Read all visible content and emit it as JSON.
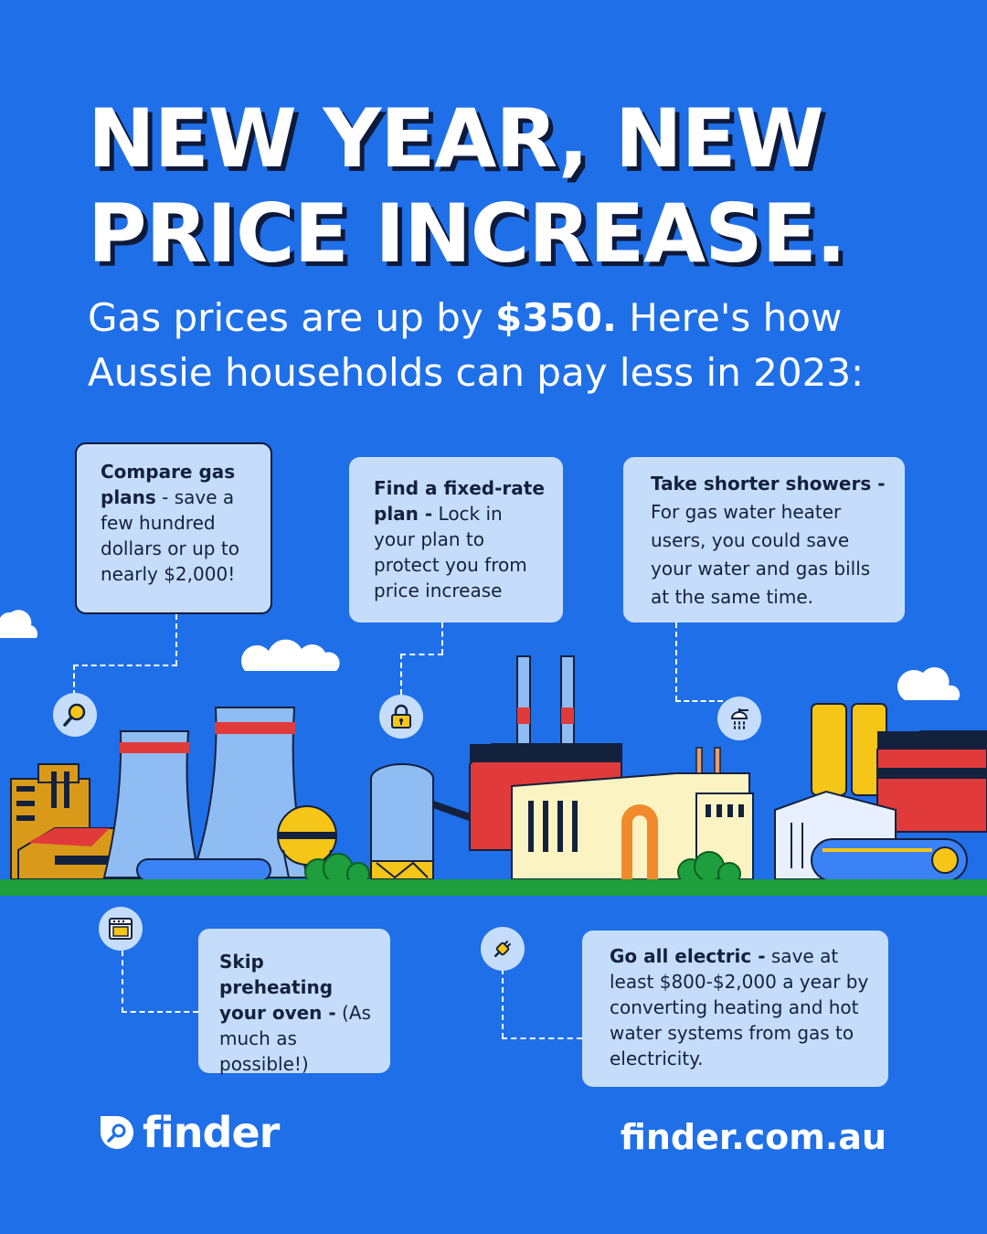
{
  "headline": {
    "line1": "NEW YEAR, NEW",
    "line2": "PRICE INCREASE."
  },
  "subhead": {
    "part1": "Gas prices are up by ",
    "amount": "$350.",
    "part2": " Here's how",
    "line2": "Aussie households can pay less in 2023:"
  },
  "tips": [
    {
      "title": "Compare gas plans",
      "body": " - save a few hundred dollars or up to nearly $2,000!",
      "icon": "magnifier-icon"
    },
    {
      "title": "Find a fixed-rate plan -",
      "body": " Lock in your plan to protect you from price increase",
      "icon": "lock-icon"
    },
    {
      "title": "Take shorter showers -",
      "body": " For gas water heater users, you could save your water and gas bills at the same time.",
      "icon": "shower-icon"
    },
    {
      "title": "Skip preheating your oven -",
      "body": " (As much as possible!)",
      "icon": "oven-icon"
    },
    {
      "title": "Go all electric -",
      "body": " save at least $800-$2,000 a year by converting heating and hot water systems from gas to electricity.",
      "icon": "plug-icon"
    }
  ],
  "footer": {
    "brand": "finder",
    "url": "finder.com.au"
  },
  "colors": {
    "background": "#1f6fe8",
    "card": "#c5ddfb",
    "text_dark": "#14213d",
    "accent_red": "#e03a3a",
    "accent_yellow": "#f5c518",
    "ground_green": "#1e9e3c"
  }
}
